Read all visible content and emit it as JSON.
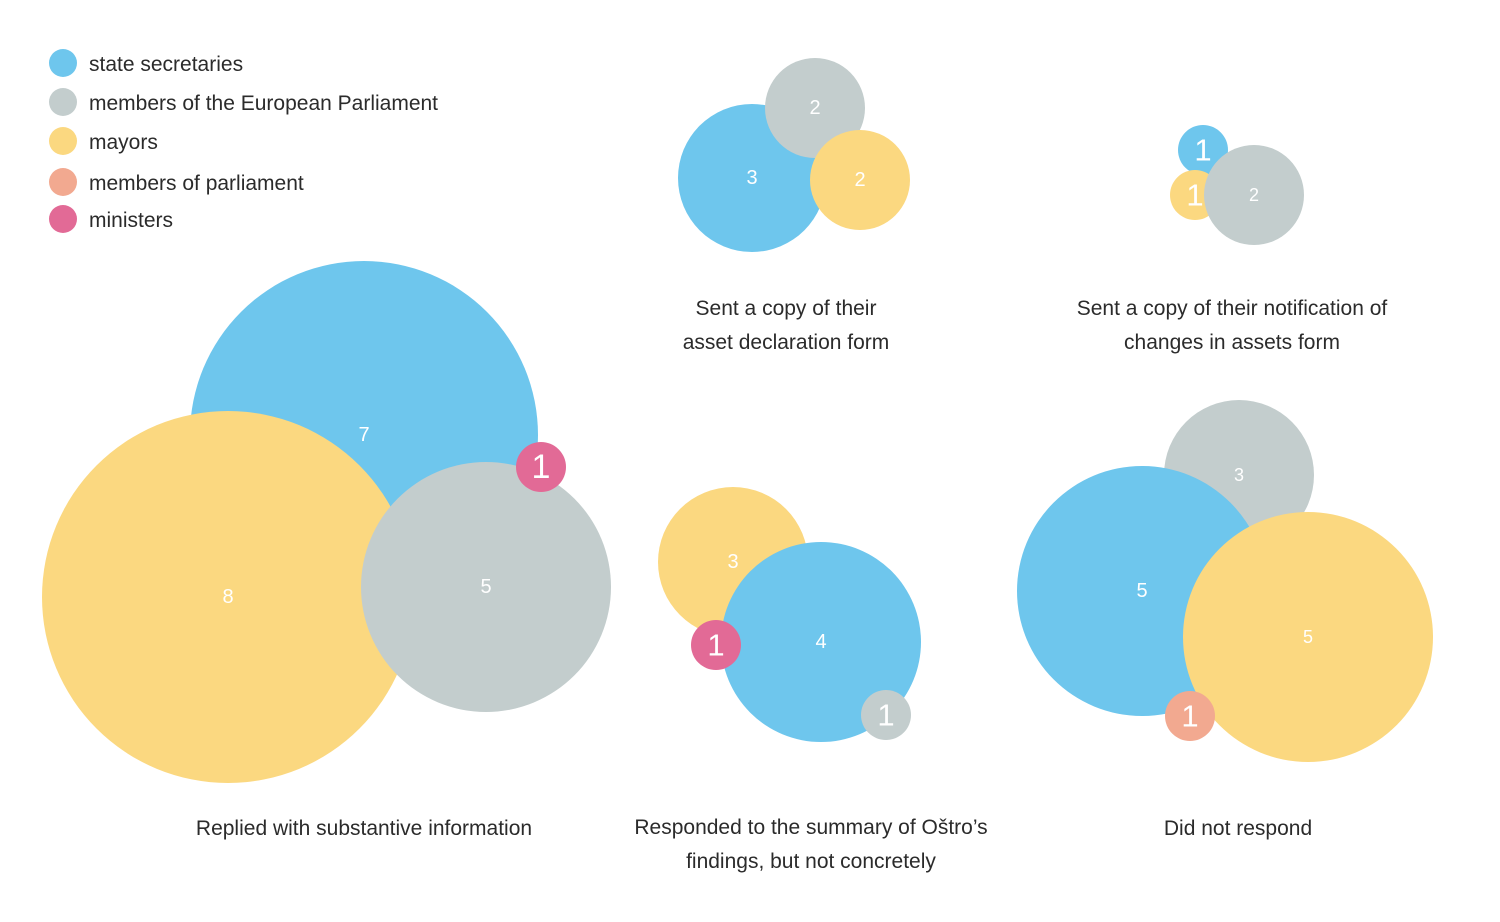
{
  "chart_data": {
    "type": "bubble",
    "colors": {
      "state secretaries": "#6ec6ed",
      "members of the European Parliament": "#c3cdcd",
      "mayors": "#fbd880",
      "members of parliament": "#f2a990",
      "ministers": "#e26a96"
    },
    "legend": [
      "state secretaries",
      "members of the European Parliament",
      "mayors",
      "members of parliament",
      "ministers"
    ],
    "groups": [
      {
        "title": [
          "Sent a copy of their",
          "asset declaration form"
        ],
        "values": [
          {
            "category": "state secretaries",
            "value": 3
          },
          {
            "category": "members of the European Parliament",
            "value": 2
          },
          {
            "category": "mayors",
            "value": 2
          }
        ]
      },
      {
        "title": [
          "Sent a copy of their notification of",
          "changes in assets form"
        ],
        "values": [
          {
            "category": "state secretaries",
            "value": 1
          },
          {
            "category": "mayors",
            "value": 1
          },
          {
            "category": "members of the European Parliament",
            "value": 2
          }
        ]
      },
      {
        "title": [
          "Replied with substantive information"
        ],
        "values": [
          {
            "category": "state secretaries",
            "value": 7
          },
          {
            "category": "mayors",
            "value": 8
          },
          {
            "category": "members of the European Parliament",
            "value": 5
          },
          {
            "category": "ministers",
            "value": 1
          }
        ]
      },
      {
        "title": [
          "Responded to the summary of Oštro’s",
          "findings, but not concretely"
        ],
        "values": [
          {
            "category": "mayors",
            "value": 3
          },
          {
            "category": "state secretaries",
            "value": 4
          },
          {
            "category": "ministers",
            "value": 1
          },
          {
            "category": "members of the European Parliament",
            "value": 1
          }
        ]
      },
      {
        "title": [
          "Did not respond"
        ],
        "values": [
          {
            "category": "members of the European Parliament",
            "value": 3
          },
          {
            "category": "state secretaries",
            "value": 5
          },
          {
            "category": "mayors",
            "value": 5
          },
          {
            "category": "members of parliament",
            "value": 1
          }
        ]
      }
    ]
  }
}
